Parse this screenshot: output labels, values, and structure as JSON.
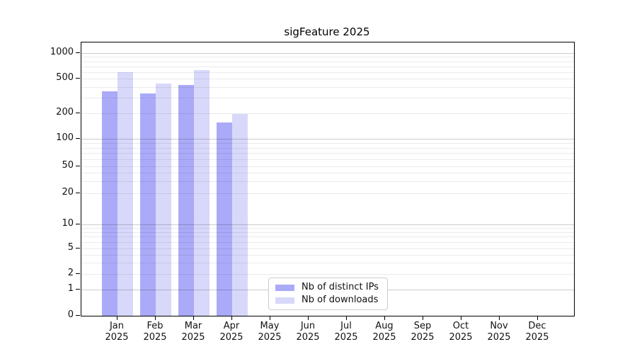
{
  "page": {
    "background": "#ffffff"
  },
  "chart_data": {
    "type": "bar",
    "title": "sigFeature 2025",
    "categories": [
      "Jan 2025",
      "Feb 2025",
      "Mar 2025",
      "Apr 2025",
      "May 2025",
      "Jun 2025",
      "Jul 2025",
      "Aug 2025",
      "Sep 2025",
      "Oct 2025",
      "Nov 2025",
      "Dec 2025"
    ],
    "series": [
      {
        "name": "Nb of distinct IPs",
        "color": "#aaaaf8",
        "values": [
          355,
          335,
          425,
          155,
          null,
          null,
          null,
          null,
          null,
          null,
          null,
          null
        ]
      },
      {
        "name": "Nb of downloads",
        "color": "#d8d8fa",
        "values": [
          590,
          440,
          625,
          195,
          null,
          null,
          null,
          null,
          null,
          null,
          null,
          null
        ]
      }
    ],
    "yscale": "symlog",
    "yticks": [
      0,
      1,
      2,
      5,
      10,
      20,
      50,
      100,
      200,
      500,
      1000
    ],
    "ylim": [
      0,
      1300
    ],
    "xlabel": "",
    "ylabel": "",
    "grid": true,
    "legend_position": "lower center"
  }
}
